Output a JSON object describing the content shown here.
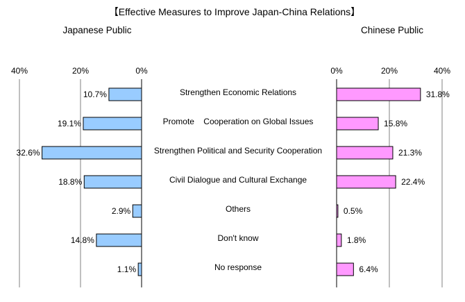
{
  "title": "【Effective Measures to Improve Japan-China Relations】",
  "colors": {
    "japan_fill": "#99ccff",
    "china_fill": "#ff99ff",
    "bar_stroke": "#000000",
    "grid": "#808080"
  },
  "chart_data": {
    "type": "bar",
    "orientation": "horizontal",
    "categories": [
      "Strengthen Economic Relations",
      "Promote    Cooperation on Global Issues",
      "Strengthen Political and Security Cooperation",
      "Civil Dialogue and Cultural Exchange",
      "Others",
      "Don't know",
      "No response"
    ],
    "series": [
      {
        "name": "Japanese Public",
        "values": [
          10.7,
          19.1,
          32.6,
          18.8,
          2.9,
          14.8,
          1.1
        ],
        "labels": [
          "10.7%",
          "19.1%",
          "32.6%",
          "18.8%",
          "2.9%",
          "14.8%",
          "1.1%"
        ],
        "direction": "left",
        "xlim": [
          0,
          40
        ],
        "ticks": [
          "40%",
          "20%",
          "0%"
        ]
      },
      {
        "name": "Chinese Public",
        "values": [
          31.8,
          15.8,
          21.3,
          22.4,
          0.5,
          1.8,
          6.4
        ],
        "labels": [
          "31.8%",
          "15.8%",
          "21.3%",
          "22.4%",
          "0.5%",
          "1.8%",
          "6.4%"
        ],
        "direction": "right",
        "xlim": [
          0,
          40
        ],
        "ticks": [
          "0%",
          "20%",
          "40%"
        ]
      }
    ],
    "grid": true,
    "legend": "none"
  }
}
